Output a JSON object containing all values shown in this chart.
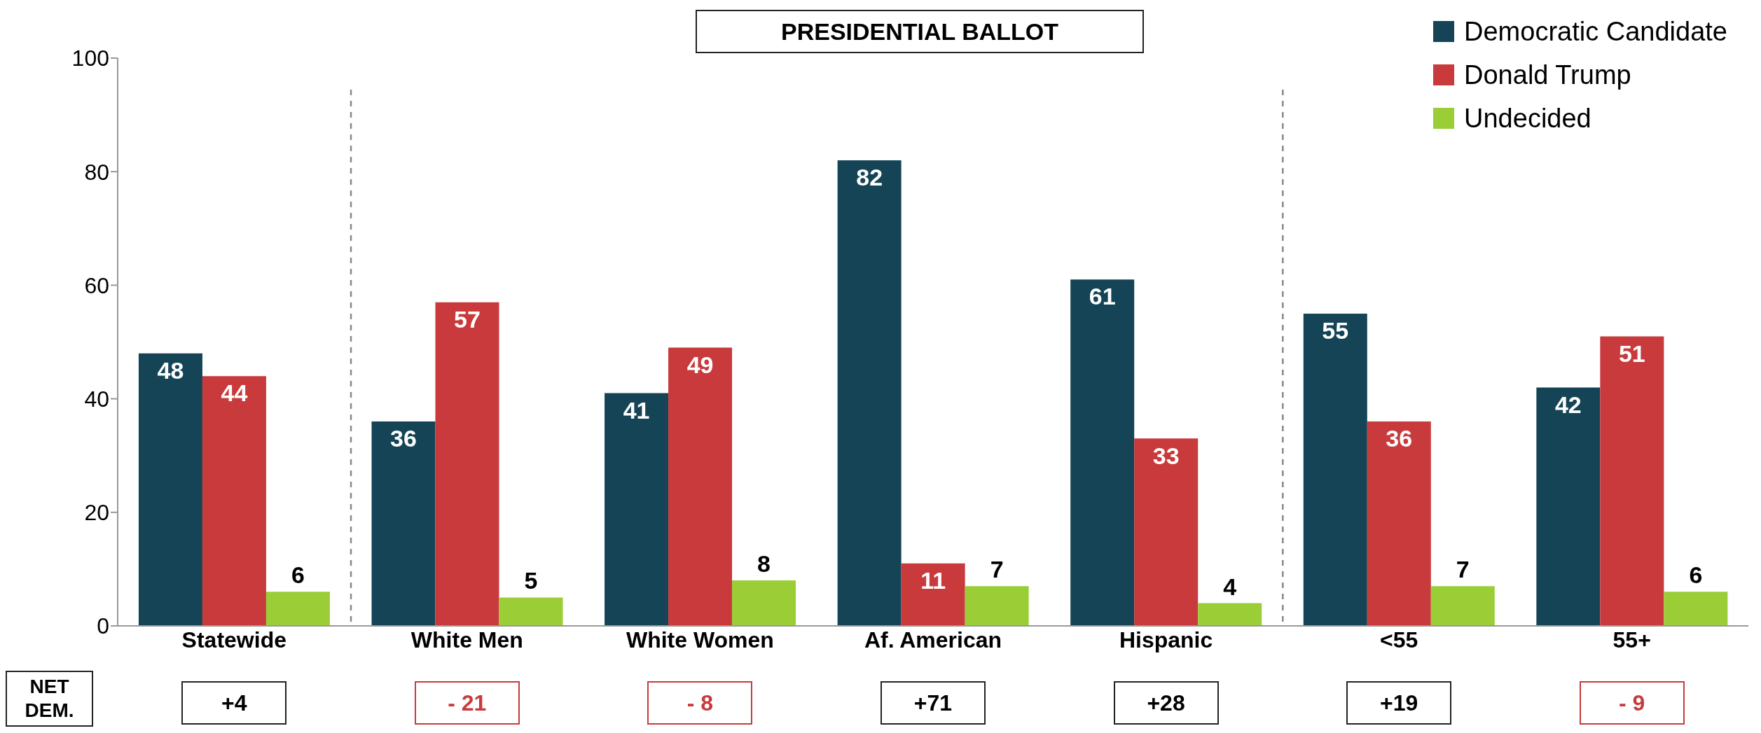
{
  "chart_data": {
    "type": "bar",
    "title": "PRESIDENTIAL BALLOT",
    "categories": [
      "Statewide",
      "White Men",
      "White Women",
      "Af. American",
      "Hispanic",
      "<55",
      "55+"
    ],
    "series": [
      {
        "name": "Democratic Candidate",
        "color": "#144455",
        "values": [
          48,
          36,
          41,
          82,
          61,
          55,
          42
        ]
      },
      {
        "name": "Donald Trump",
        "color": "#c83a3b",
        "values": [
          44,
          57,
          49,
          11,
          33,
          36,
          51
        ]
      },
      {
        "name": "Undecided",
        "color": "#9acd36",
        "values": [
          6,
          5,
          8,
          7,
          4,
          7,
          6
        ]
      }
    ],
    "ylim": [
      0,
      100
    ],
    "yticks": [
      0,
      20,
      40,
      60,
      80,
      100
    ],
    "legend": "top right",
    "data_labels": true,
    "annotations": [
      "NET DEM.",
      "+4",
      "- 21",
      "- 8",
      "+71",
      "+28",
      "+19",
      "- 9"
    ]
  }
}
